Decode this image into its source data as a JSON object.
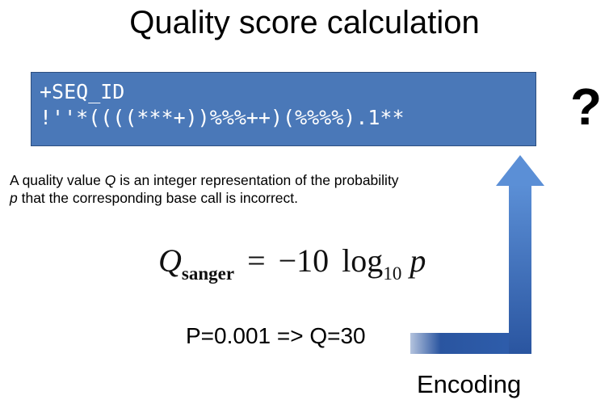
{
  "title": "Quality score calculation",
  "sequence_box": {
    "header_line": "+SEQ_ID",
    "quality_line": "!''*((((***+))%%%++)(%%%%).1**"
  },
  "question_mark": "?",
  "description": {
    "line1_prefix": "A quality value ",
    "line1_var": "Q",
    "line1_suffix": " is an integer representation of the probability",
    "line2_var": "p",
    "line2_suffix": " that the corresponding base call is incorrect."
  },
  "formula": {
    "lhs_var": "Q",
    "lhs_subscript": "sanger",
    "equals": "=",
    "coefficient": "−10",
    "log": "log",
    "log_base": "10",
    "rhs_var": "p"
  },
  "example": "P=0.001 => Q=30",
  "encoding_label": "Encoding",
  "colors": {
    "box_fill": "#4a78b8",
    "box_border": "#2d4f80",
    "arrow_light": "#5b8fd6",
    "arrow_dark": "#2a55a0"
  }
}
